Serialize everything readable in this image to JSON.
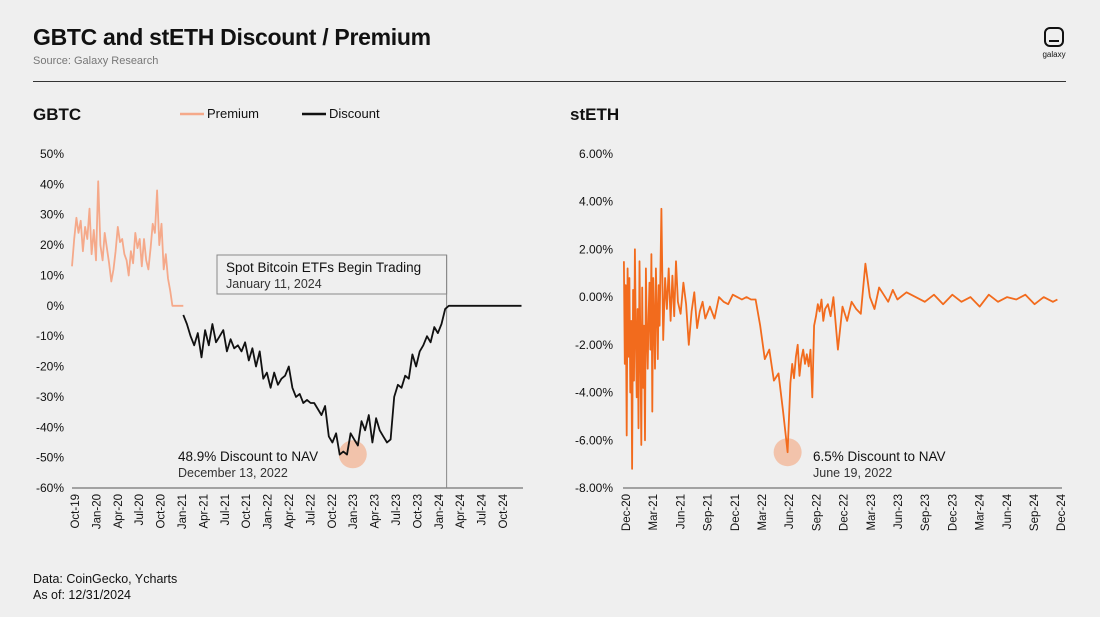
{
  "header": {
    "title": "GBTC and stETH Discount / Premium",
    "source": "Source: Galaxy Research"
  },
  "logo": {
    "label": "galaxy"
  },
  "footer": {
    "data_source": "Data: CoinGecko, Ycharts",
    "as_of": "As of: 12/31/2024"
  },
  "chart_data": [
    {
      "type": "line",
      "title": "GBTC",
      "legend": [
        {
          "name": "Premium",
          "color": "#f5a98a"
        },
        {
          "name": "Discount",
          "color": "#111111"
        }
      ],
      "ylim": [
        -60,
        50
      ],
      "yticks": [
        50,
        40,
        30,
        20,
        10,
        0,
        -10,
        -20,
        -30,
        -40,
        -50,
        -60
      ],
      "ytick_labels": [
        "50%",
        "40%",
        "30%",
        "20%",
        "10%",
        "0%",
        "-10%",
        "-20%",
        "-30%",
        "-40%",
        "-50%",
        "-60%"
      ],
      "xlim": [
        0,
        62
      ],
      "xtick_labels": [
        "Oct-19",
        "Jan-20",
        "Apr-20",
        "Jul-20",
        "Oct-20",
        "Jan-21",
        "Apr-21",
        "Jul-21",
        "Oct-21",
        "Jan-22",
        "Apr-22",
        "Jul-22",
        "Oct-22",
        "Jan-23",
        "Apr-23",
        "Jul-23",
        "Oct-23",
        "Jan-24",
        "Apr-24",
        "Jul-24",
        "Oct-24"
      ],
      "series": [
        {
          "name": "Premium",
          "color": "#f5a98a",
          "x": [
            0,
            0.3,
            0.6,
            0.9,
            1.2,
            1.5,
            1.8,
            2.1,
            2.4,
            2.7,
            3.0,
            3.3,
            3.6,
            3.9,
            4.2,
            4.5,
            4.8,
            5.1,
            5.4,
            5.7,
            6.0,
            6.3,
            6.6,
            6.9,
            7.2,
            7.5,
            7.8,
            8.1,
            8.4,
            8.7,
            9.0,
            9.3,
            9.6,
            9.9,
            10.2,
            10.5,
            10.8,
            11.1,
            11.4,
            11.7,
            12.0,
            12.3,
            12.6,
            12.9,
            13.2,
            13.5,
            13.8,
            14.1,
            14.4,
            14.7,
            15.0,
            15.3
          ],
          "y": [
            13,
            22,
            29,
            24,
            28,
            18,
            26,
            22,
            32,
            17,
            25,
            15,
            41,
            20,
            15,
            24,
            19,
            14,
            8,
            12,
            18,
            26,
            21,
            22,
            17,
            15,
            10,
            18,
            14,
            24,
            19,
            22,
            13,
            22,
            15,
            12,
            19,
            27,
            24,
            38,
            20,
            27,
            12,
            17,
            9,
            5,
            0,
            0,
            0,
            0,
            0,
            0
          ]
        },
        {
          "name": "Discount",
          "color": "#111111",
          "x": [
            15.3,
            15.8,
            16.3,
            16.8,
            17.3,
            17.8,
            18.3,
            18.8,
            19.3,
            19.8,
            20.3,
            20.8,
            21.3,
            21.8,
            22.3,
            22.8,
            23.3,
            23.8,
            24.3,
            24.8,
            25.3,
            25.8,
            26.3,
            26.8,
            27.3,
            27.8,
            28.3,
            28.8,
            29.3,
            29.8,
            30.3,
            30.8,
            31.3,
            31.8,
            32.3,
            32.8,
            33.3,
            33.8,
            34.3,
            34.8,
            35.3,
            35.8,
            36.3,
            36.8,
            37.3,
            37.8,
            38.3,
            38.8,
            39.3,
            39.8,
            40.3,
            40.8,
            41.3,
            41.8,
            42.3,
            42.8,
            43.3,
            43.8,
            44.3,
            44.8,
            45.3,
            45.8,
            46.3,
            46.8,
            47.3,
            47.8,
            48.3,
            48.8,
            49.3,
            49.8,
            50.3,
            50.8,
            51.3,
            51.8,
            52.3,
            52.8,
            53.3,
            53.8,
            54.3,
            54.8,
            55.3,
            55.8,
            56.3,
            56.8,
            57.3,
            57.8,
            58.3,
            58.8,
            59.3,
            59.8,
            60.3,
            60.8,
            61.3,
            61.8
          ],
          "y": [
            -3,
            -6,
            -10,
            -13,
            -9,
            -17,
            -8,
            -13,
            -6,
            -12,
            -10,
            -8,
            -15,
            -11,
            -14,
            -13,
            -15,
            -12,
            -18,
            -14,
            -20,
            -15,
            -24,
            -22,
            -27,
            -22,
            -26,
            -24,
            -23,
            -20,
            -27,
            -30,
            -29,
            -32,
            -31,
            -32,
            -32,
            -34,
            -36,
            -33,
            -43,
            -45,
            -42,
            -49,
            -48,
            -49,
            -42,
            -44,
            -46,
            -38,
            -41,
            -36,
            -45,
            -37,
            -41,
            -43,
            -45,
            -44,
            -30,
            -26,
            -27,
            -23,
            -24,
            -16,
            -20,
            -15,
            -13,
            -10,
            -12,
            -7,
            -9,
            -6,
            -1,
            0,
            0,
            0,
            0,
            0,
            0,
            0,
            0,
            0,
            0,
            0,
            0,
            0,
            0,
            0,
            0,
            0,
            0,
            0,
            0,
            0
          ]
        }
      ],
      "annotations": [
        {
          "title": "Spot Bitcoin ETFs Begin Trading",
          "subtitle": "January 11, 2024",
          "x": 51.5
        },
        {
          "title": "48.9% Discount to NAV",
          "subtitle": "December 13, 2022",
          "x": 38.6,
          "y": -48.9
        }
      ]
    },
    {
      "type": "line",
      "title": "stETH",
      "ylim": [
        -8,
        7
      ],
      "yticks": [
        6,
        4,
        2,
        0,
        -2,
        -4,
        -6,
        -8
      ],
      "ytick_labels": [
        "6.00%",
        "4.00%",
        "2.00%",
        "0.00%",
        "-2.00%",
        "-4.00%",
        "-6.00%",
        "-8.00%"
      ],
      "xlim": [
        0,
        48
      ],
      "xtick_labels": [
        "Dec-20",
        "Mar-21",
        "Jun-21",
        "Sep-21",
        "Dec-21",
        "Mar-22",
        "Jun-22",
        "Sep-22",
        "Dec-22",
        "Mar-23",
        "Jun-23",
        "Sep-23",
        "Dec-23",
        "Mar-24",
        "Jun-24",
        "Sep-24",
        "Dec-24"
      ],
      "series": [
        {
          "name": "stETH",
          "color": "#f26b1d",
          "x": [
            0.1,
            0.2,
            0.3,
            0.4,
            0.5,
            0.6,
            0.7,
            0.8,
            0.9,
            1.0,
            1.1,
            1.2,
            1.3,
            1.4,
            1.5,
            1.6,
            1.7,
            1.8,
            1.9,
            2.0,
            2.1,
            2.2,
            2.3,
            2.4,
            2.5,
            2.6,
            2.7,
            2.8,
            2.9,
            3.0,
            3.1,
            3.2,
            3.3,
            3.4,
            3.5,
            3.6,
            3.7,
            3.8,
            3.9,
            4.0,
            4.2,
            4.4,
            4.6,
            4.8,
            5.0,
            5.2,
            5.4,
            5.6,
            5.8,
            6.0,
            6.3,
            6.6,
            6.9,
            7.2,
            7.5,
            7.8,
            8.1,
            8.4,
            8.7,
            9.0,
            9.5,
            10.0,
            10.5,
            11.0,
            11.5,
            12.0,
            12.5,
            13.0,
            13.5,
            14.0,
            14.5,
            15.0,
            15.5,
            16.0,
            16.5,
            17.0,
            17.5,
            18.0,
            18.3,
            18.5,
            18.7,
            18.9,
            19.1,
            19.3,
            19.5,
            19.7,
            19.9,
            20.1,
            20.3,
            20.5,
            20.7,
            20.9,
            21.1,
            21.3,
            21.5,
            21.7,
            21.9,
            22.1,
            22.4,
            22.7,
            23.0,
            23.5,
            24.0,
            24.5,
            25.0,
            25.5,
            26.0,
            26.5,
            27.0,
            27.5,
            28.0,
            28.5,
            29.0,
            29.5,
            30.0,
            31.0,
            32.0,
            33.0,
            34.0,
            35.0,
            36.0,
            37.0,
            38.0,
            39.0,
            40.0,
            41.0,
            42.0,
            43.0,
            44.0,
            45.0,
            46.0,
            47.0,
            47.5
          ],
          "y": [
            1.5,
            -2.8,
            0.5,
            -5.8,
            1.2,
            -2.5,
            0.8,
            -4.0,
            -1.0,
            -7.2,
            0.3,
            -3.5,
            2.0,
            -1.5,
            -4.2,
            -0.5,
            -5.5,
            1.5,
            -2.0,
            -6.2,
            0.4,
            -3.8,
            -1.2,
            -6.0,
            1.2,
            -1.5,
            -3.0,
            -0.8,
            0.6,
            -2.2,
            1.8,
            -4.8,
            0.8,
            -1.0,
            -3.0,
            1.2,
            -0.5,
            -2.6,
            0.5,
            -1.2,
            3.7,
            -1.8,
            0.8,
            -0.5,
            1.2,
            -1.0,
            0.9,
            -0.8,
            1.5,
            -0.2,
            -0.7,
            0.6,
            -0.3,
            -2.0,
            -0.6,
            0.2,
            -1.3,
            -0.6,
            -0.2,
            -0.9,
            -0.4,
            -0.9,
            0.0,
            -0.2,
            -0.3,
            0.1,
            0.0,
            -0.1,
            0.0,
            -0.1,
            -0.1,
            -1.2,
            -2.6,
            -2.2,
            -3.5,
            -3.2,
            -4.8,
            -6.5,
            -3.6,
            -2.8,
            -3.4,
            -2.5,
            -2.0,
            -3.3,
            -2.6,
            -2.2,
            -2.8,
            -2.4,
            -2.9,
            -2.2,
            -4.2,
            -1.2,
            -0.8,
            -0.3,
            -0.6,
            -0.1,
            -1.0,
            -0.5,
            -0.3,
            -0.8,
            0.0,
            -2.2,
            -0.4,
            -1.0,
            -0.2,
            -0.5,
            -0.7,
            1.4,
            0.0,
            -0.5,
            0.4,
            0.1,
            -0.2,
            0.3,
            -0.1,
            0.2,
            0.0,
            -0.2,
            0.1,
            -0.3,
            0.1,
            -0.2,
            0.0,
            -0.4,
            0.1,
            -0.2,
            0.0,
            -0.1,
            0.1,
            -0.3,
            0.0,
            -0.2,
            -0.1
          ]
        }
      ],
      "annotations": [
        {
          "title": "6.5% Discount to NAV",
          "subtitle": "June 19, 2022",
          "x": 18.0,
          "y": -6.5
        }
      ]
    }
  ]
}
